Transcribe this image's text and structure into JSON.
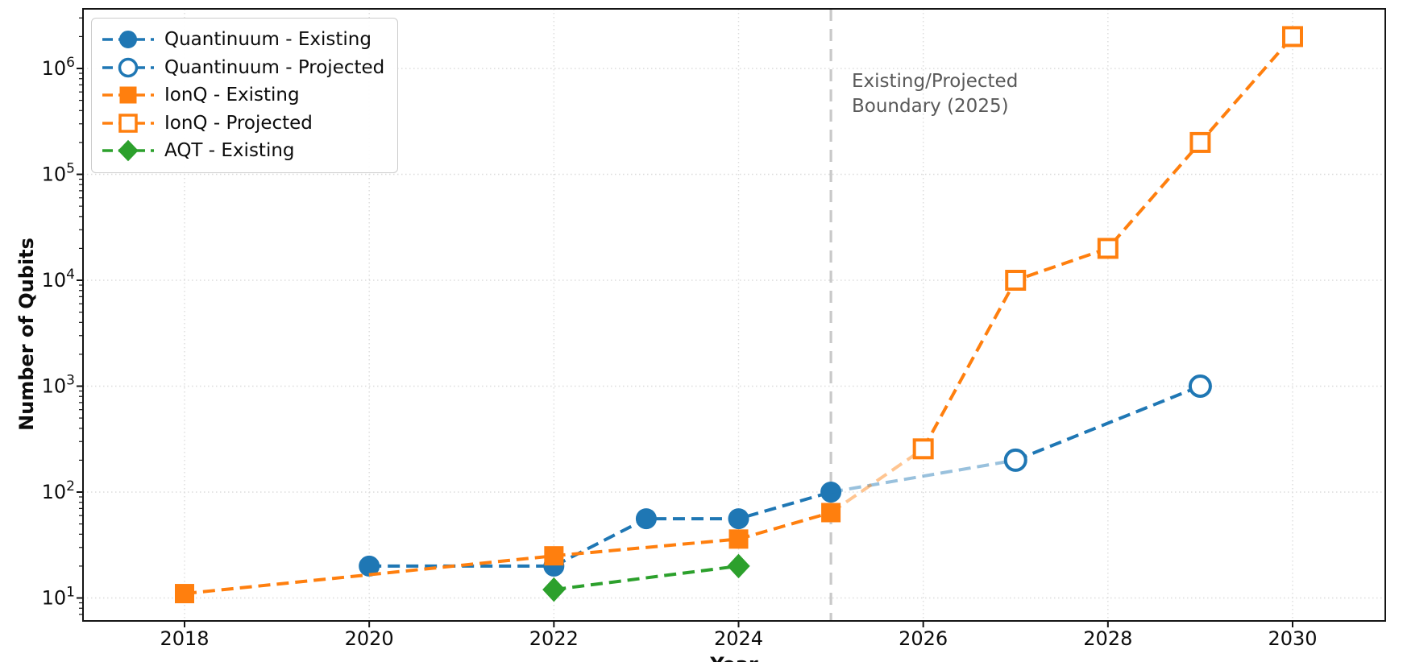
{
  "figure": {
    "ylabel": "Number of Qubits",
    "xlabel": "Year"
  },
  "annotation": {
    "line1": "Existing/Projected",
    "line2": "Boundary (2025)",
    "color": "#595959"
  },
  "chart_data": {
    "type": "line",
    "title": "",
    "xlabel": "Year",
    "ylabel": "Number of Qubits",
    "x_scale": "linear",
    "y_scale": "log",
    "xlim": [
      2016.9,
      2031.0
    ],
    "ylim": [
      6,
      3600000
    ],
    "x_ticks": [
      2018,
      2020,
      2022,
      2024,
      2026,
      2028,
      2030
    ],
    "y_tick_exponents": [
      1,
      2,
      3,
      4,
      5,
      6
    ],
    "grid": "dotted",
    "legend_position": "upper-left",
    "boundary": {
      "year": 2025,
      "label": "Existing/Projected Boundary (2025)",
      "line_color": "#c9c9c9",
      "label_color": "#595959"
    },
    "colors": {
      "quantinuum": "#1f77b4",
      "ionq": "#ff7f0e",
      "aqt": "#2ca02c"
    },
    "series": [
      {
        "name": "Quantinuum - Existing",
        "color": "#1f77b4",
        "marker": "circle",
        "fill": "filled",
        "linestyle": "dashed",
        "points": [
          [
            2020,
            20
          ],
          [
            2022,
            20
          ],
          [
            2023,
            56
          ],
          [
            2024,
            56
          ],
          [
            2025,
            100
          ]
        ]
      },
      {
        "name": "Quantinuum - Projected",
        "color": "#1f77b4",
        "marker": "circle",
        "fill": "open",
        "linestyle": "dashed",
        "bridge_from": [
          2025,
          100
        ],
        "points": [
          [
            2027,
            200
          ],
          [
            2029,
            1000
          ]
        ]
      },
      {
        "name": "IonQ - Existing",
        "color": "#ff7f0e",
        "marker": "square",
        "fill": "filled",
        "linestyle": "dashed",
        "points": [
          [
            2018,
            11
          ],
          [
            2022,
            25
          ],
          [
            2024,
            36
          ],
          [
            2025,
            64
          ]
        ]
      },
      {
        "name": "IonQ - Projected",
        "color": "#ff7f0e",
        "marker": "square",
        "fill": "open",
        "linestyle": "dashed",
        "bridge_from": [
          2025,
          64
        ],
        "points": [
          [
            2026,
            256
          ],
          [
            2027,
            10000
          ],
          [
            2028,
            20000
          ],
          [
            2029,
            200000
          ],
          [
            2030,
            2000000
          ]
        ]
      },
      {
        "name": "AQT - Existing",
        "color": "#2ca02c",
        "marker": "diamond",
        "fill": "filled",
        "linestyle": "dashed",
        "points": [
          [
            2022,
            12
          ],
          [
            2024,
            20
          ]
        ]
      }
    ]
  }
}
